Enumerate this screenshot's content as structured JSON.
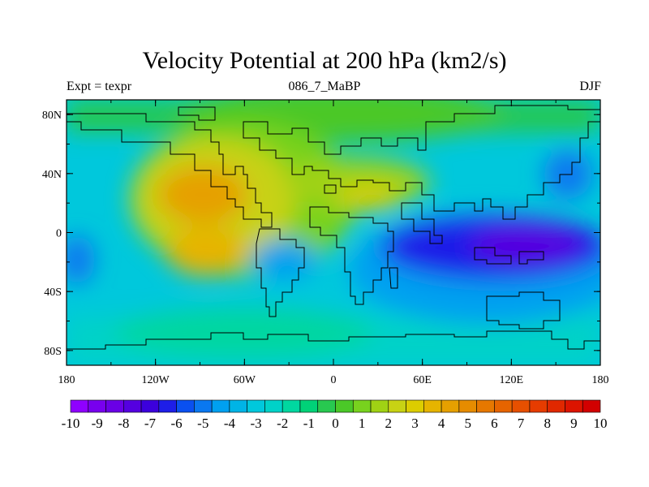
{
  "title": "Velocity Potential at 200 hPa (km2/s)",
  "subtitle_left": "Expt = texpr",
  "subtitle_center": "086_7_MaBP",
  "subtitle_right": "DJF",
  "map": {
    "lat_ticks": [
      "80N",
      "40N",
      "0",
      "40S",
      "80S"
    ],
    "lon_ticks": [
      "180",
      "120W",
      "60W",
      "0",
      "60E",
      "120E",
      "180"
    ]
  },
  "colorbar": {
    "labels": [
      "-10",
      "-9",
      "-8",
      "-7",
      "-6",
      "-5",
      "-4",
      "-3",
      "-2",
      "-1",
      "0",
      "1",
      "2",
      "3",
      "4",
      "5",
      "6",
      "7",
      "8",
      "9",
      "10"
    ],
    "colors": [
      "#8f00ff",
      "#7800ee",
      "#6a00e6",
      "#5500e0",
      "#3c00dc",
      "#1e1ee8",
      "#0a50f0",
      "#0a78f0",
      "#00a0f0",
      "#00b4e6",
      "#00c8dc",
      "#00d2c8",
      "#00d7a0",
      "#00d278",
      "#28c850",
      "#4bc828",
      "#78d21e",
      "#a0d214",
      "#c8d214",
      "#dccd00",
      "#e6b400",
      "#e6a000",
      "#e68c00",
      "#e67800",
      "#e66400",
      "#e65000",
      "#e63c00",
      "#e02800",
      "#dc1400",
      "#d20000"
    ]
  }
}
